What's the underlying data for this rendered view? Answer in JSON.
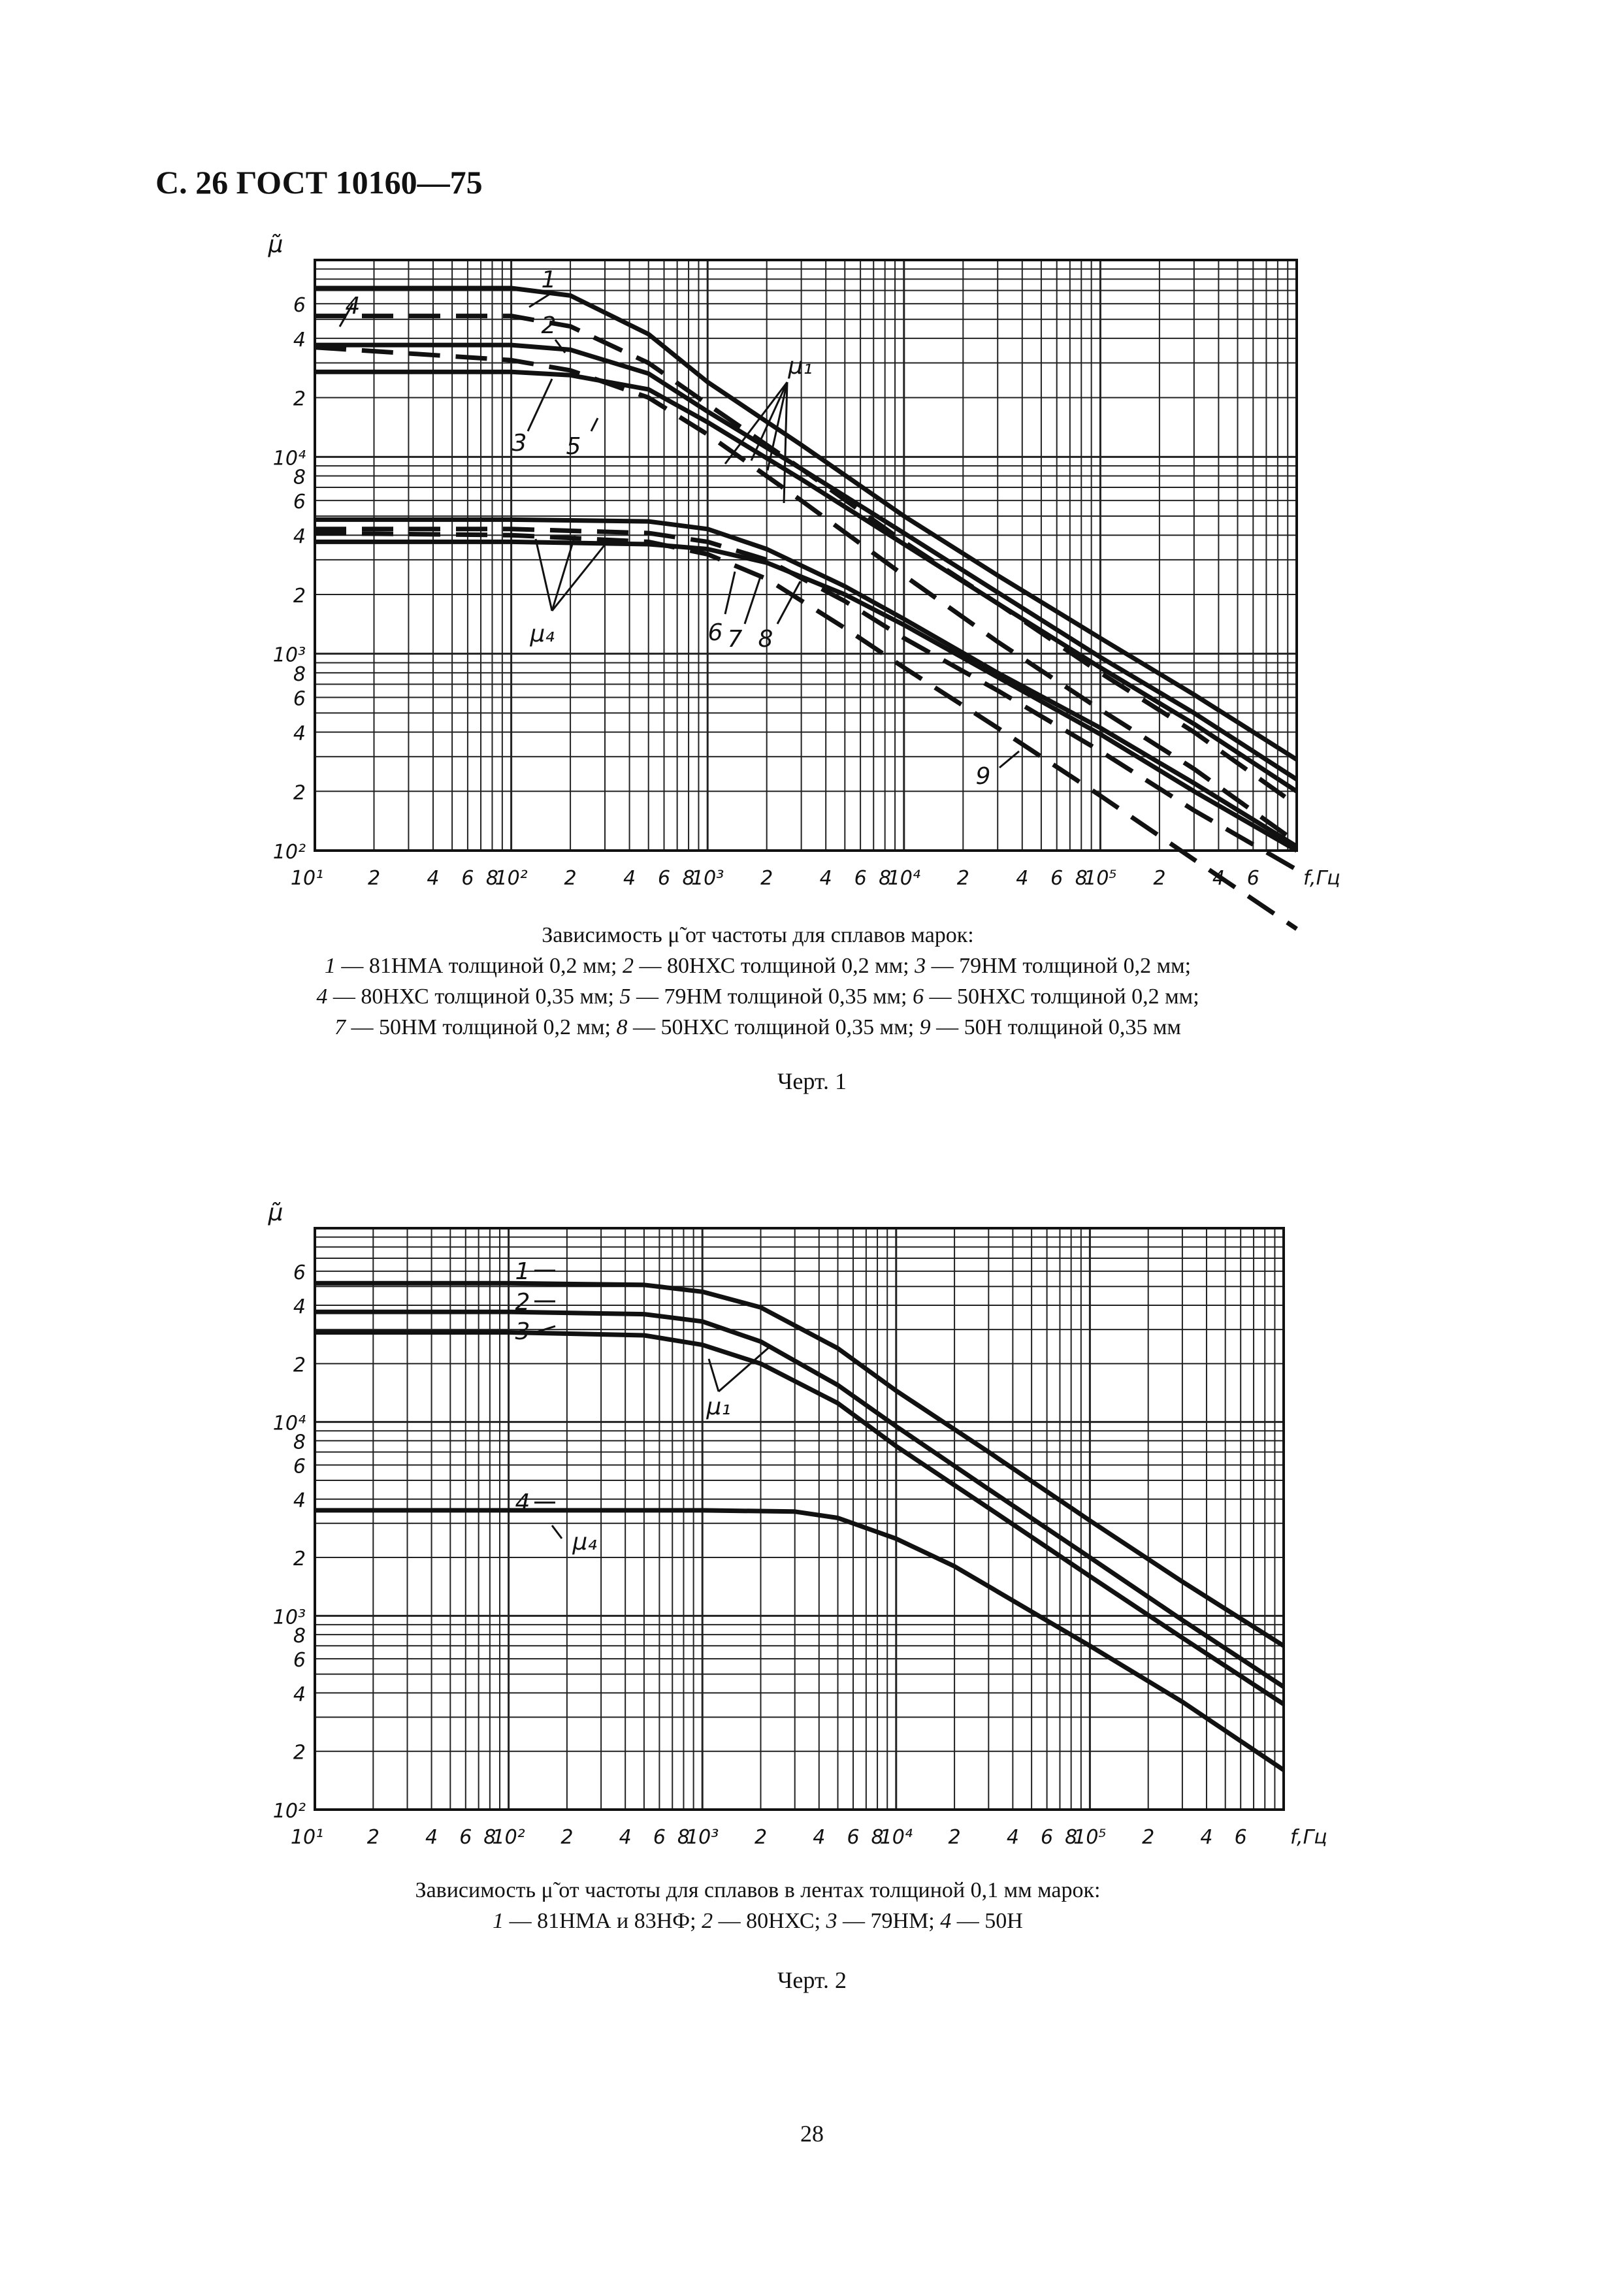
{
  "page": {
    "header": "С. 26 ГОСТ 10160—75",
    "page_number": "28"
  },
  "chart_data": [
    {
      "type": "line",
      "figure_label": "Черт. 1",
      "x_scale": "log",
      "y_scale": "log",
      "xlim": [
        10,
        1000000
      ],
      "ylim": [
        100,
        100000
      ],
      "ylabel": "μ̃",
      "xlabel": "f,Гц",
      "x_tick_labels": [
        "10¹",
        "2",
        "4",
        "6",
        "8",
        "10²",
        "2",
        "4",
        "6",
        "8",
        "10³",
        "2",
        "4",
        "6",
        "8",
        "10⁴",
        "2",
        "4",
        "6",
        "8",
        "10⁵",
        "2",
        "4",
        "6"
      ],
      "y_tick_labels": [
        "6",
        "4",
        "2",
        "10⁴",
        "8",
        "6",
        "4",
        "2",
        "10³",
        "8",
        "6",
        "4",
        "2",
        "10²"
      ],
      "group_labels": [
        "μ₁",
        "μ₄"
      ],
      "caption_title": "Зависимость μ̃ от частоты для сплавов марок:",
      "caption_lines": [
        [
          {
            "n": "1",
            "t": " — 81НМА толщиной 0,2 мм;"
          },
          {
            "n": "2",
            "t": " — 80НХС толщиной 0,2 мм;"
          },
          {
            "n": "3",
            "t": " — 79НМ толщиной 0,2 мм;"
          }
        ],
        [
          {
            "n": "4",
            "t": " — 80НХС толщиной 0,35 мм;"
          },
          {
            "n": "5",
            "t": " — 79НМ толщиной 0,35 мм;"
          },
          {
            "n": "6",
            "t": " — 50НХС толщиной 0,2 мм;"
          }
        ],
        [
          {
            "n": "7",
            "t": " — 50НМ толщиной 0,2 мм;"
          },
          {
            "n": "8",
            "t": " — 50НХС толщиной 0,35 мм;"
          },
          {
            "n": "9",
            "t": " — 50Н толщиной 0,35 мм"
          }
        ]
      ],
      "series": [
        {
          "name": "1",
          "dash": false,
          "x": [
            10,
            100,
            200,
            500,
            1000,
            3000,
            10000,
            30000,
            100000,
            300000,
            1000000
          ],
          "y": [
            72000,
            72000,
            66000,
            42000,
            24000,
            11500,
            5000,
            2500,
            1200,
            620,
            290
          ]
        },
        {
          "name": "2",
          "dash": false,
          "x": [
            10,
            100,
            200,
            500,
            1000,
            3000,
            10000,
            30000,
            100000,
            300000,
            1000000
          ],
          "y": [
            37000,
            37000,
            35000,
            26500,
            17000,
            8700,
            4100,
            2050,
            960,
            500,
            230
          ]
        },
        {
          "name": "3",
          "dash": false,
          "x": [
            10,
            100,
            200,
            500,
            1000,
            3000,
            10000,
            30000,
            100000,
            300000,
            1000000
          ],
          "y": [
            27000,
            27000,
            26000,
            22000,
            15000,
            7700,
            3600,
            1800,
            850,
            440,
            200
          ]
        },
        {
          "name": "4",
          "dash": true,
          "x": [
            10,
            100,
            200,
            500,
            1000,
            3000,
            10000,
            30000,
            100000,
            300000,
            1000000
          ],
          "y": [
            52000,
            52000,
            46000,
            30000,
            18500,
            8700,
            3700,
            1800,
            800,
            400,
            170
          ]
        },
        {
          "name": "5",
          "dash": true,
          "x": [
            10,
            100,
            200,
            500,
            1000,
            3000,
            10000,
            30000,
            100000,
            300000,
            1000000
          ],
          "y": [
            36000,
            31000,
            27500,
            20000,
            13000,
            6000,
            2500,
            1150,
            520,
            260,
            110
          ]
        },
        {
          "name": "6",
          "dash": false,
          "x": [
            10,
            100,
            500,
            1000,
            2000,
            5000,
            10000,
            30000,
            100000,
            300000,
            1000000
          ],
          "y": [
            4800,
            4800,
            4700,
            4300,
            3400,
            2200,
            1500,
            800,
            420,
            220,
            105
          ]
        },
        {
          "name": "7",
          "dash": false,
          "x": [
            10,
            100,
            500,
            1000,
            2000,
            5000,
            10000,
            30000,
            100000,
            300000,
            1000000
          ],
          "y": [
            3700,
            3700,
            3600,
            3400,
            2900,
            2000,
            1400,
            760,
            390,
            200,
            100
          ]
        },
        {
          "name": "8",
          "dash": true,
          "x": [
            10,
            100,
            500,
            1000,
            2000,
            5000,
            10000,
            30000,
            100000,
            300000,
            1000000
          ],
          "y": [
            4300,
            4300,
            4100,
            3700,
            3000,
            1850,
            1200,
            650,
            320,
            160,
            80
          ]
        },
        {
          "name": "9",
          "dash": true,
          "x": [
            10,
            100,
            500,
            1000,
            2000,
            5000,
            10000,
            30000,
            100000,
            300000,
            1000000
          ],
          "y": [
            4100,
            4000,
            3700,
            3200,
            2400,
            1350,
            850,
            420,
            190,
            90,
            40
          ]
        }
      ]
    },
    {
      "type": "line",
      "figure_label": "Черт. 2",
      "x_scale": "log",
      "y_scale": "log",
      "xlim": [
        10,
        1000000
      ],
      "ylim": [
        100,
        100000
      ],
      "ylabel": "μ̃",
      "xlabel": "f,Гц",
      "x_tick_labels": [
        "10¹",
        "2",
        "4",
        "6",
        "8",
        "10²",
        "2",
        "4",
        "6",
        "8",
        "10³",
        "2",
        "4",
        "6",
        "8",
        "10⁴",
        "2",
        "4",
        "6",
        "8",
        "10⁵",
        "2",
        "4",
        "6"
      ],
      "y_tick_labels": [
        "6",
        "4",
        "2",
        "10⁴",
        "8",
        "6",
        "4",
        "2",
        "10³",
        "8",
        "6",
        "4",
        "2",
        "10²"
      ],
      "group_labels": [
        "μ₁",
        "μ₄"
      ],
      "caption_title": "Зависимость μ̃ от частоты для сплавов в лентах толщиной 0,1 мм марок:",
      "caption_lines": [
        [
          {
            "n": "1",
            "t": " — 81НМА и 83НФ;"
          },
          {
            "n": "2",
            "t": " — 80НХС;"
          },
          {
            "n": "3",
            "t": " — 79НМ;"
          },
          {
            "n": "4",
            "t": " — 50Н"
          }
        ]
      ],
      "series": [
        {
          "name": "1",
          "dash": false,
          "x": [
            10,
            100,
            500,
            1000,
            2000,
            5000,
            10000,
            30000,
            100000,
            300000,
            1000000
          ],
          "y": [
            52000,
            52000,
            51000,
            47000,
            39000,
            24000,
            14500,
            7000,
            3100,
            1500,
            700
          ]
        },
        {
          "name": "2",
          "dash": false,
          "x": [
            10,
            100,
            500,
            1000,
            2000,
            5000,
            10000,
            30000,
            100000,
            300000,
            1000000
          ],
          "y": [
            37000,
            37000,
            36000,
            33000,
            26000,
            15500,
            9500,
            4500,
            2000,
            950,
            430
          ]
        },
        {
          "name": "3",
          "dash": false,
          "x": [
            10,
            100,
            500,
            1000,
            2000,
            5000,
            10000,
            30000,
            100000,
            300000,
            1000000
          ],
          "y": [
            29000,
            29000,
            28000,
            25000,
            20000,
            12500,
            7500,
            3600,
            1600,
            770,
            350
          ]
        },
        {
          "name": "4",
          "dash": false,
          "x": [
            10,
            100,
            500,
            1000,
            3000,
            5000,
            10000,
            20000,
            100000,
            300000,
            1000000
          ],
          "y": [
            3500,
            3500,
            3500,
            3500,
            3450,
            3200,
            2500,
            1800,
            700,
            360,
            160
          ]
        }
      ]
    }
  ]
}
